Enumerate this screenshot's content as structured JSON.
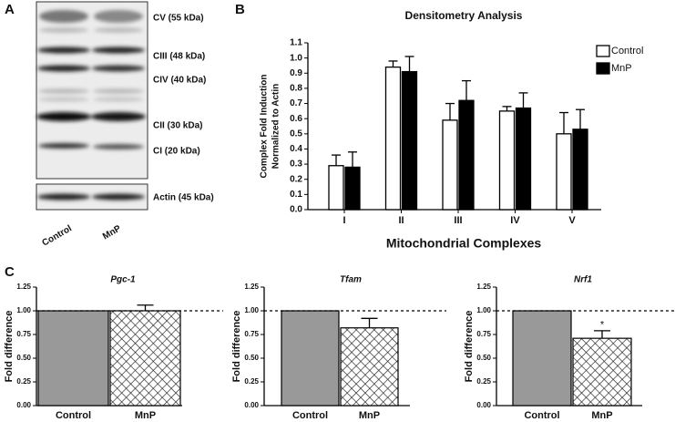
{
  "panel_labels": [
    "A",
    "B",
    "C"
  ],
  "blot": {
    "bands": [
      "CV (55 kDa)",
      "CIII (48 kDa)",
      "CIV (40 kDa)",
      "CII (30 kDa)",
      "CI (20 kDa)"
    ],
    "loading": "Actin (45 kDa)",
    "lanes": [
      "Control",
      "MnP"
    ]
  },
  "chart_data": [
    {
      "type": "bar",
      "title": "Densitometry Analysis",
      "xlabel": "Mitochondrial Complexes",
      "ylabel": [
        "Complex Fold Induction",
        "Normalized to Actin"
      ],
      "categories": [
        "I",
        "II",
        "III",
        "IV",
        "V"
      ],
      "series": [
        {
          "name": "Control",
          "color": "#ffffff",
          "values": [
            0.29,
            0.94,
            0.59,
            0.65,
            0.5
          ],
          "errors": [
            0.07,
            0.04,
            0.11,
            0.03,
            0.14
          ]
        },
        {
          "name": "MnP",
          "color": "#000000",
          "values": [
            0.28,
            0.91,
            0.72,
            0.67,
            0.53
          ],
          "errors": [
            0.1,
            0.1,
            0.13,
            0.1,
            0.13
          ]
        }
      ],
      "ylim": [
        0,
        1.1
      ],
      "yticks": [
        {
          "value": 0,
          "label": "0.0"
        },
        0.1,
        0.2,
        0.3,
        0.4,
        0.5,
        0.6,
        0.7,
        0.8,
        0.9,
        {
          "value": 1,
          "label": "1.0"
        },
        1.1
      ],
      "legend": "top-right"
    },
    {
      "type": "bar",
      "title": "Pgc-1",
      "ylabel": "Fold difference",
      "categories": [
        "Control",
        "MnP"
      ],
      "values": [
        1.0,
        1.0
      ],
      "errors": [
        null,
        0.06
      ],
      "colors": [
        "#999999",
        "#ffffff"
      ],
      "hatch": [
        false,
        true
      ],
      "hline": 1,
      "ylim": [
        0,
        1.25
      ],
      "yticks": [
        {
          "value": 0,
          "label": "0.00"
        },
        0.25,
        {
          "value": 0.5,
          "label": "0.50"
        },
        0.75,
        {
          "value": 1,
          "label": "1.00"
        },
        1.25
      ]
    },
    {
      "type": "bar",
      "title": "Tfam",
      "ylabel": "Fold difference",
      "categories": [
        "Control",
        "MnP"
      ],
      "values": [
        1.0,
        0.82
      ],
      "errors": [
        null,
        0.1
      ],
      "colors": [
        "#999999",
        "#ffffff"
      ],
      "hatch": [
        false,
        true
      ],
      "hline": 1,
      "ylim": [
        0,
        1.25
      ],
      "yticks": [
        {
          "value": 0,
          "label": "0.00"
        },
        0.25,
        {
          "value": 0.5,
          "label": "0.50"
        },
        0.75,
        {
          "value": 1,
          "label": "1.00"
        },
        1.25
      ]
    },
    {
      "type": "bar",
      "title": "Nrf1",
      "ylabel": "Fold difference",
      "categories": [
        "Control",
        "MnP"
      ],
      "values": [
        1.0,
        0.71
      ],
      "errors": [
        null,
        0.08
      ],
      "annotations": [
        null,
        "*"
      ],
      "colors": [
        "#999999",
        "#ffffff"
      ],
      "hatch": [
        false,
        true
      ],
      "hline": 1,
      "ylim": [
        0,
        1.25
      ],
      "yticks": [
        {
          "value": 0,
          "label": "0.00"
        },
        0.25,
        {
          "value": 0.5,
          "label": "0.50"
        },
        0.75,
        {
          "value": 1,
          "label": "1.00"
        },
        1.25
      ]
    }
  ]
}
